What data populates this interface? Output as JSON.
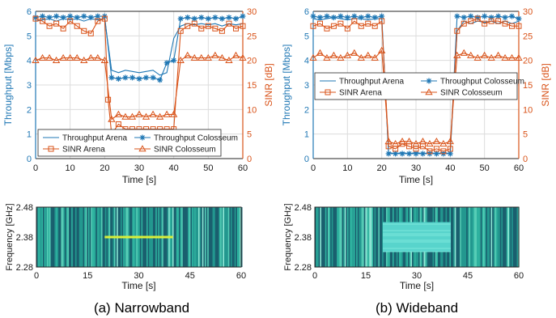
{
  "colors": {
    "blue": "#1f77b4",
    "orange": "#d95319",
    "grid": "#dcdcdc",
    "axis": "#262626"
  },
  "chart_data": [
    {
      "panel": "a",
      "type": "line",
      "caption": "(a) Narrowband",
      "xlabel": "Time [s]",
      "ylabel_left": "Throughput [Mbps]",
      "ylabel_right": "SINR [dB]",
      "xlim": [
        0,
        60
      ],
      "ylim_left": [
        0,
        6
      ],
      "ylim_right": [
        0,
        30
      ],
      "xticks": [
        "0",
        "10",
        "20",
        "30",
        "40",
        "50",
        "60"
      ],
      "yticks_left": [
        "0",
        "1",
        "2",
        "3",
        "4",
        "5",
        "6"
      ],
      "yticks_right": [
        "0",
        "5",
        "10",
        "15",
        "20",
        "25",
        "30"
      ],
      "grid": true,
      "legend_position": "lower-left",
      "series": [
        {
          "name": "Throughput Arena",
          "axis": "left",
          "color": "blue",
          "style": "solid",
          "marker": "none",
          "x": [
            0,
            2,
            4,
            6,
            8,
            10,
            12,
            14,
            16,
            18,
            20,
            22,
            24,
            26,
            28,
            30,
            32,
            34,
            36,
            38,
            40,
            42,
            44,
            46,
            48,
            50,
            52,
            54,
            56,
            58,
            60
          ],
          "y": [
            5.6,
            5.65,
            5.7,
            5.6,
            5.7,
            5.65,
            5.7,
            5.6,
            5.7,
            5.65,
            5.7,
            3.6,
            3.5,
            3.6,
            3.55,
            3.5,
            3.55,
            3.6,
            3.4,
            3.5,
            4.9,
            5.4,
            5.5,
            5.45,
            5.5,
            5.45,
            5.5,
            5.4,
            5.5,
            5.45,
            5.5
          ]
        },
        {
          "name": "Throughput Colosseum",
          "axis": "left",
          "color": "blue",
          "style": "solid",
          "marker": "star",
          "x": [
            0,
            2,
            4,
            6,
            8,
            10,
            12,
            14,
            16,
            18,
            20,
            22,
            24,
            26,
            28,
            30,
            32,
            34,
            36,
            38,
            40,
            42,
            44,
            46,
            48,
            50,
            52,
            54,
            56,
            58,
            60
          ],
          "y": [
            5.75,
            5.8,
            5.75,
            5.8,
            5.75,
            5.8,
            5.75,
            5.8,
            5.75,
            5.8,
            5.8,
            3.3,
            3.25,
            3.3,
            3.3,
            3.25,
            3.3,
            3.3,
            3.2,
            3.9,
            4.0,
            5.7,
            5.75,
            5.7,
            5.75,
            5.7,
            5.75,
            5.7,
            5.75,
            5.7,
            5.8
          ]
        },
        {
          "name": "SINR Arena",
          "axis": "right",
          "color": "orange",
          "style": "solid",
          "marker": "square",
          "x": [
            0,
            2,
            4,
            6,
            8,
            10,
            12,
            14,
            16,
            18,
            20,
            21,
            22,
            24,
            26,
            28,
            30,
            32,
            34,
            36,
            38,
            40,
            42,
            44,
            46,
            48,
            50,
            52,
            54,
            56,
            58,
            60
          ],
          "y": [
            28.5,
            28,
            27,
            27.5,
            26.5,
            28,
            27,
            26,
            25.5,
            28,
            28.5,
            12,
            5,
            7,
            6,
            6,
            6,
            6,
            6,
            6,
            6,
            6,
            26,
            27,
            27.5,
            26.5,
            27,
            26.5,
            26,
            27.5,
            26.5,
            27
          ]
        },
        {
          "name": "SINR Colosseum",
          "axis": "right",
          "color": "orange",
          "style": "solid",
          "marker": "triangle",
          "x": [
            0,
            2,
            4,
            6,
            8,
            10,
            12,
            14,
            16,
            18,
            20,
            22,
            24,
            26,
            28,
            30,
            32,
            34,
            36,
            38,
            40,
            42,
            44,
            46,
            48,
            50,
            52,
            54,
            56,
            58,
            60
          ],
          "y": [
            20,
            20.5,
            20.5,
            20,
            20.5,
            20.5,
            20.5,
            20,
            20.5,
            20.5,
            20,
            8,
            9,
            8.5,
            8.5,
            9,
            8.5,
            9,
            8.5,
            9,
            9,
            20,
            21,
            20.5,
            20.5,
            20.5,
            21,
            20.5,
            20,
            21,
            20.5
          ]
        }
      ],
      "spectrogram": {
        "ylabel": "Frequency [GHz]",
        "xlabel": "Time [s]",
        "yticks": [
          "2.28",
          "2.38",
          "2.48"
        ],
        "xticks": [
          "0",
          "15",
          "30",
          "45",
          "60"
        ],
        "signal": {
          "type": "narrowband",
          "t_start": 20,
          "t_end": 40,
          "freq": 2.38
        }
      }
    },
    {
      "panel": "b",
      "type": "line",
      "caption": "(b) Wideband",
      "xlabel": "Time [s]",
      "ylabel_left": "Throughput [Mbps]",
      "ylabel_right": "SINR [dB]",
      "xlim": [
        0,
        60
      ],
      "ylim_left": [
        0,
        6
      ],
      "ylim_right": [
        0,
        30
      ],
      "xticks": [
        "0",
        "10",
        "20",
        "30",
        "40",
        "50",
        "60"
      ],
      "yticks_left": [
        "0",
        "1",
        "2",
        "3",
        "4",
        "5",
        "6"
      ],
      "yticks_right": [
        "0",
        "5",
        "10",
        "15",
        "20",
        "25",
        "30"
      ],
      "grid": true,
      "legend_position": "middle",
      "series": [
        {
          "name": "Throughput Arena",
          "axis": "left",
          "color": "blue",
          "style": "solid",
          "marker": "none",
          "x": [
            0,
            2,
            4,
            6,
            8,
            10,
            12,
            14,
            16,
            18,
            20,
            22,
            24,
            26,
            28,
            30,
            32,
            34,
            36,
            38,
            40,
            42,
            44,
            46,
            48,
            50,
            52,
            54,
            56,
            58,
            60
          ],
          "y": [
            5.7,
            5.65,
            5.7,
            5.75,
            5.7,
            5.65,
            5.7,
            5.7,
            5.65,
            5.7,
            5.7,
            0.25,
            0.2,
            0.25,
            0.2,
            0.25,
            0.2,
            0.25,
            0.2,
            0.25,
            0.2,
            5.2,
            5.6,
            5.5,
            5.6,
            5.55,
            5.6,
            5.5,
            5.6,
            5.5,
            5.6
          ]
        },
        {
          "name": "Throughput Colosseum",
          "axis": "left",
          "color": "blue",
          "style": "solid",
          "marker": "star",
          "x": [
            0,
            2,
            4,
            6,
            8,
            10,
            12,
            14,
            16,
            18,
            20,
            22,
            24,
            26,
            28,
            30,
            32,
            34,
            36,
            38,
            40,
            42,
            44,
            46,
            48,
            50,
            52,
            54,
            56,
            58,
            60
          ],
          "y": [
            5.8,
            5.75,
            5.8,
            5.75,
            5.8,
            5.75,
            5.8,
            5.75,
            5.8,
            5.75,
            5.8,
            0.2,
            0.2,
            0.2,
            0.2,
            0.2,
            0.2,
            0.2,
            0.2,
            0.2,
            0.2,
            5.8,
            5.75,
            5.8,
            5.75,
            5.8,
            5.75,
            5.8,
            5.75,
            5.8,
            5.7
          ]
        },
        {
          "name": "SINR Arena",
          "axis": "right",
          "color": "orange",
          "style": "solid",
          "marker": "square",
          "x": [
            0,
            2,
            4,
            6,
            8,
            10,
            12,
            14,
            16,
            18,
            20,
            22,
            24,
            26,
            28,
            30,
            32,
            34,
            36,
            38,
            40,
            42,
            44,
            46,
            48,
            50,
            52,
            54,
            56,
            58,
            60
          ],
          "y": [
            27,
            27.5,
            26.5,
            27,
            27.5,
            26.5,
            28,
            27,
            27.5,
            27,
            28,
            2.5,
            2,
            3,
            2.5,
            2,
            2.5,
            1.5,
            2,
            1.5,
            2,
            26,
            27.5,
            28,
            28.5,
            27.5,
            28,
            28,
            27.5,
            27,
            27
          ]
        },
        {
          "name": "SINR Colosseum",
          "axis": "right",
          "color": "orange",
          "style": "solid",
          "marker": "triangle",
          "x": [
            0,
            2,
            4,
            6,
            8,
            10,
            12,
            14,
            16,
            18,
            20,
            22,
            24,
            26,
            28,
            30,
            32,
            34,
            36,
            38,
            40,
            42,
            44,
            46,
            48,
            50,
            52,
            54,
            56,
            58,
            60
          ],
          "y": [
            20.5,
            21.5,
            20.5,
            21,
            20.5,
            21,
            21.5,
            20.5,
            21,
            20.5,
            22,
            3.5,
            3,
            3.5,
            3.5,
            3,
            3.5,
            3,
            3.5,
            3,
            3.5,
            21,
            21.5,
            21,
            20.5,
            21,
            20.5,
            21,
            20.5,
            20.5,
            20.5
          ]
        }
      ],
      "spectrogram": {
        "ylabel": "Frequency [GHz]",
        "xlabel": "Time [s]",
        "yticks": [
          "2.28",
          "2.38",
          "2.48"
        ],
        "xticks": [
          "0",
          "15",
          "30",
          "45",
          "60"
        ],
        "signal": {
          "type": "wideband",
          "t_start": 20,
          "t_end": 40,
          "freq_low": 2.33,
          "freq_high": 2.43
        }
      }
    }
  ]
}
